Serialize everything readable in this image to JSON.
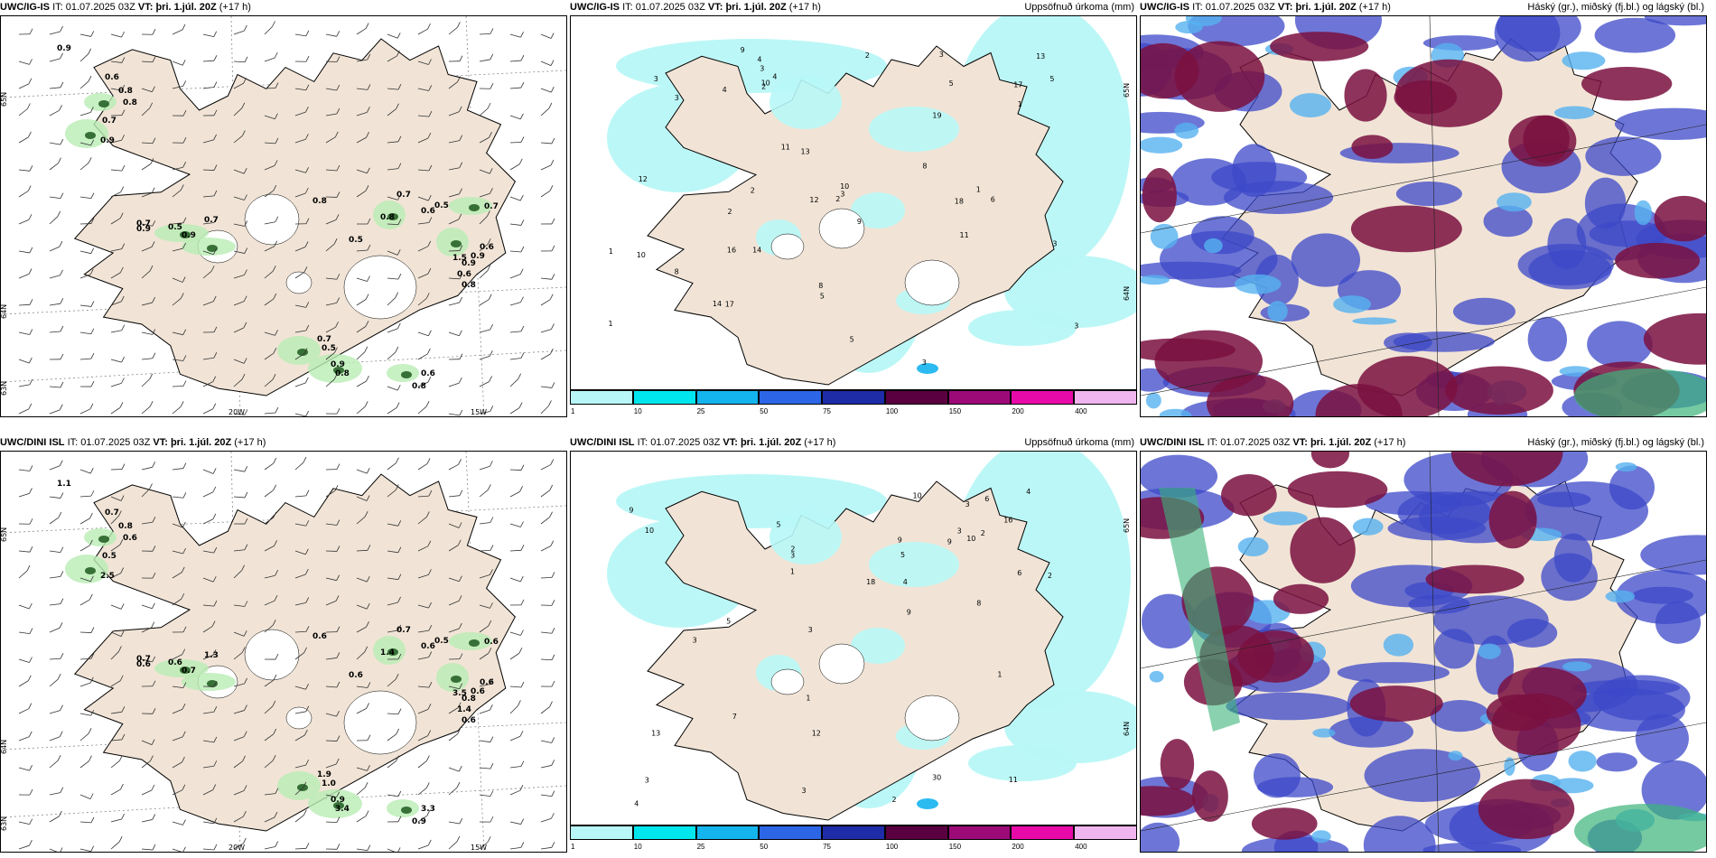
{
  "panels": [
    {
      "model": "UWC/IG-IS",
      "it_label": "IT:",
      "it_value": "01.07.2025 03Z",
      "vt_label": "VT:",
      "vt_value": "þri. 1.júl. 20Z",
      "lead": "(+17 h)",
      "field": "",
      "type": "wind-fog",
      "lat_labels": [
        "65N",
        "64N",
        "63N"
      ],
      "lon_labels": [
        "20W",
        "15W"
      ],
      "values": [
        "0.9",
        "0.6",
        "0.8",
        "0.8",
        "0.7",
        "0.9",
        "0.7",
        "0.9",
        "0.5",
        "0.9",
        "0.7",
        "0.8",
        "0.5",
        "0.7",
        "0.6",
        "0.5",
        "0.7",
        "0.6",
        "0.9",
        "0.6",
        "0.9",
        "0.8",
        "0.7",
        "0.5",
        "0.9",
        "0.8",
        "0.6",
        "0.8",
        "1.5",
        "0.8"
      ]
    },
    {
      "model": "UWC/IG-IS",
      "it_label": "IT:",
      "it_value": "01.07.2025 03Z",
      "vt_label": "VT:",
      "vt_value": "þri. 1.júl. 20Z",
      "lead": "(+17 h)",
      "field": "Uppsöfnuð úrkoma (mm)",
      "type": "precip",
      "lat_labels": [
        "65N",
        "64N"
      ],
      "values": [
        "2",
        "1",
        "3",
        "2",
        "3",
        "1",
        "1",
        "3",
        "11",
        "13",
        "14",
        "10",
        "11",
        "3",
        "8",
        "3",
        "4",
        "3",
        "2",
        "9",
        "5",
        "4",
        "3",
        "2",
        "10",
        "13",
        "6",
        "5",
        "8",
        "18",
        "17",
        "16",
        "12",
        "17",
        "10",
        "14",
        "19",
        "5",
        "5",
        "12",
        "9",
        "8",
        "4",
        "3",
        "2",
        "1"
      ]
    },
    {
      "model": "UWC/IG-IS",
      "it_label": "IT:",
      "it_value": "01.07.2025 03Z",
      "vt_label": "VT:",
      "vt_value": "þri. 1.júl. 20Z",
      "lead": "(+17 h)",
      "field": "Háský (gr.), miðský (fj.bl.) og lágský (bl.)",
      "type": "clouds"
    },
    {
      "model": "UWC/DINI ISL",
      "it_label": "IT:",
      "it_value": "01.07.2025 03Z",
      "vt_label": "VT:",
      "vt_value": "þri. 1.júl. 20Z",
      "lead": "(+17 h)",
      "field": "",
      "type": "wind-fog",
      "lat_labels": [
        "65N",
        "64N",
        "63N"
      ],
      "lon_labels": [
        "20W",
        "15W"
      ],
      "values": [
        "1.1",
        "0.7",
        "0.8",
        "0.6",
        "0.5",
        "2.5",
        "0.7",
        "0.6",
        "0.6",
        "0.7",
        "1.3",
        "0.6",
        "0.6",
        "0.7",
        "0.6",
        "0.5",
        "0.6",
        "0.6",
        "0.6",
        "1.4",
        "0.8",
        "0.6",
        "1.9",
        "1.0",
        "0.9",
        "3.4",
        "3.3",
        "0.9",
        "3.5",
        "1.4"
      ]
    },
    {
      "model": "UWC/DINI ISL",
      "it_label": "IT:",
      "it_value": "01.07.2025 03Z",
      "vt_label": "VT:",
      "vt_value": "þri. 1.júl. 20Z",
      "lead": "(+17 h)",
      "field": "Uppsöfnuð úrkoma (mm)",
      "type": "precip",
      "lat_labels": [
        "65N",
        "64N"
      ],
      "values": [
        "2",
        "1",
        "2",
        "4",
        "3",
        "5",
        "9",
        "13",
        "10",
        "12",
        "10",
        "9",
        "5",
        "3",
        "4",
        "1",
        "3",
        "2",
        "3",
        "4",
        "5",
        "3",
        "30",
        "18",
        "11",
        "10",
        "9",
        "16",
        "7",
        "8",
        "9",
        "6",
        "3",
        "2",
        "6",
        "3",
        "1"
      ]
    },
    {
      "model": "UWC/DINI ISL",
      "it_label": "IT:",
      "it_value": "01.07.2025 03Z",
      "vt_label": "VT:",
      "vt_value": "þri. 1.júl. 20Z",
      "lead": "(+17 h)",
      "field": "Háský (gr.), miðský (fj.bl.) og lágský (bl.)",
      "type": "clouds"
    }
  ],
  "colorbar": {
    "labels": [
      "1",
      "10",
      "25",
      "50",
      "75",
      "100",
      "150",
      "200",
      "400"
    ],
    "colors": [
      "#b8f7f7",
      "#00e6ee",
      "#14b4ee",
      "#2c66e6",
      "#1e2ca8",
      "#5a0040",
      "#9c0a78",
      "#e80aa8",
      "#f0b4ee"
    ]
  },
  "colors": {
    "land": "#f1e4d6",
    "fog_light": "#b9ecb4",
    "fog_dark": "#1e5a1e",
    "precip_light": "#b8f7f7",
    "high_cloud": "#7a1040",
    "mid_cloud": "#3c48c8",
    "low_cloud": "#56b2f0",
    "green_cloud": "#3cb47a"
  }
}
